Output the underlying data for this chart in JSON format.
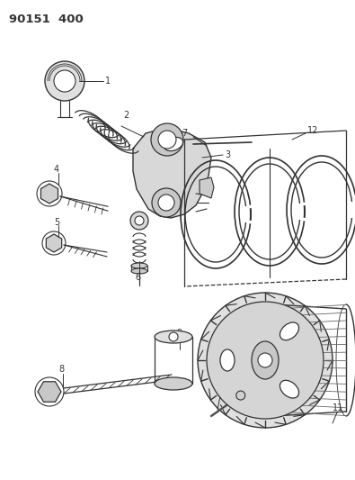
{
  "title": "90151 400",
  "background_color": "#ffffff",
  "line_color": "#333333",
  "figsize": [
    3.95,
    5.33
  ],
  "dpi": 100
}
